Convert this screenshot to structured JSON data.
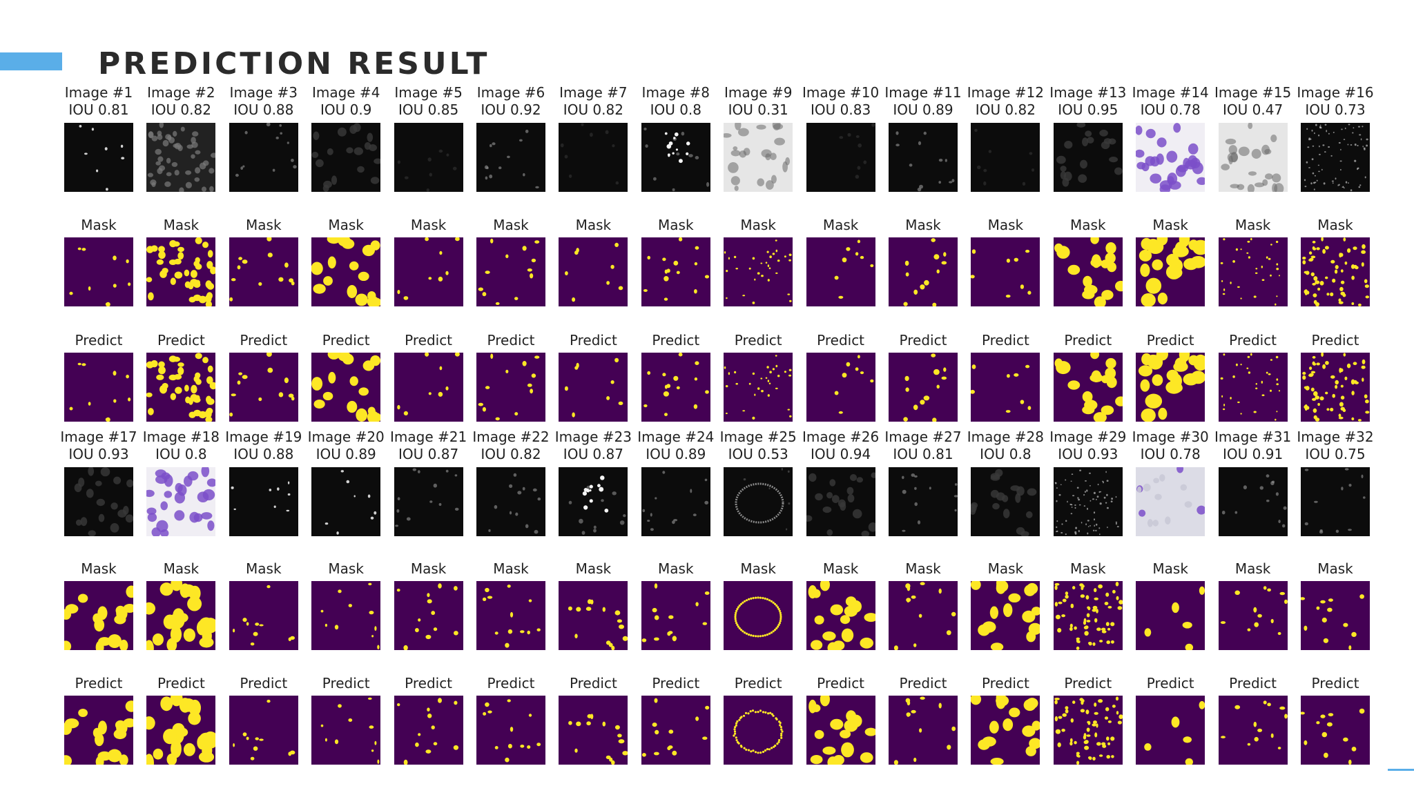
{
  "title": "PREDICTION RESULT",
  "mask_label": "Mask",
  "predict_label": "Predict",
  "colors": {
    "accent": "#5aaee8",
    "mask_background": "#440154",
    "mask_foreground": "#fde725",
    "stain_purple": "#7b4fc9"
  },
  "images": [
    {
      "label": "Image #1",
      "iou": "IOU 0.81",
      "style": "sparse-bright"
    },
    {
      "label": "Image #2",
      "iou": "IOU 0.82",
      "style": "dense-gray"
    },
    {
      "label": "Image #3",
      "iou": "IOU 0.88",
      "style": "sparse-dim"
    },
    {
      "label": "Image #4",
      "iou": "IOU 0.9",
      "style": "medium-dim"
    },
    {
      "label": "Image #5",
      "iou": "IOU 0.85",
      "style": "very-dark"
    },
    {
      "label": "Image #6",
      "iou": "IOU 0.92",
      "style": "sparse-dim"
    },
    {
      "label": "Image #7",
      "iou": "IOU 0.82",
      "style": "very-dark"
    },
    {
      "label": "Image #8",
      "iou": "IOU 0.8",
      "style": "bright-cluster"
    },
    {
      "label": "Image #9",
      "iou": "IOU 0.31",
      "style": "light-tissue"
    },
    {
      "label": "Image #10",
      "iou": "IOU 0.83",
      "style": "very-dark"
    },
    {
      "label": "Image #11",
      "iou": "IOU 0.89",
      "style": "sparse-dim"
    },
    {
      "label": "Image #12",
      "iou": "IOU 0.82",
      "style": "very-dark"
    },
    {
      "label": "Image #13",
      "iou": "IOU 0.95",
      "style": "medium-dim"
    },
    {
      "label": "Image #14",
      "iou": "IOU 0.78",
      "style": "purple-stain"
    },
    {
      "label": "Image #15",
      "iou": "IOU 0.47",
      "style": "light-tissue"
    },
    {
      "label": "Image #16",
      "iou": "IOU 0.73",
      "style": "dense-speckle"
    },
    {
      "label": "Image #17",
      "iou": "IOU 0.93",
      "style": "medium-dim"
    },
    {
      "label": "Image #18",
      "iou": "IOU 0.8",
      "style": "purple-stain"
    },
    {
      "label": "Image #19",
      "iou": "IOU 0.88",
      "style": "sparse-bright"
    },
    {
      "label": "Image #20",
      "iou": "IOU 0.89",
      "style": "sparse-bright"
    },
    {
      "label": "Image #21",
      "iou": "IOU 0.87",
      "style": "sparse-dim"
    },
    {
      "label": "Image #22",
      "iou": "IOU 0.82",
      "style": "sparse-dim"
    },
    {
      "label": "Image #23",
      "iou": "IOU 0.87",
      "style": "bright-cluster"
    },
    {
      "label": "Image #24",
      "iou": "IOU 0.89",
      "style": "sparse-dim"
    },
    {
      "label": "Image #25",
      "iou": "IOU 0.53",
      "style": "ring-dark"
    },
    {
      "label": "Image #26",
      "iou": "IOU 0.94",
      "style": "medium-dim"
    },
    {
      "label": "Image #27",
      "iou": "IOU 0.81",
      "style": "sparse-dim"
    },
    {
      "label": "Image #28",
      "iou": "IOU 0.8",
      "style": "medium-dim"
    },
    {
      "label": "Image #29",
      "iou": "IOU 0.93",
      "style": "dense-speckle"
    },
    {
      "label": "Image #30",
      "iou": "IOU 0.78",
      "style": "pale-purple"
    },
    {
      "label": "Image #31",
      "iou": "IOU 0.91",
      "style": "sparse-dim"
    },
    {
      "label": "Image #32",
      "iou": "IOU 0.75",
      "style": "sparse-dim"
    }
  ]
}
